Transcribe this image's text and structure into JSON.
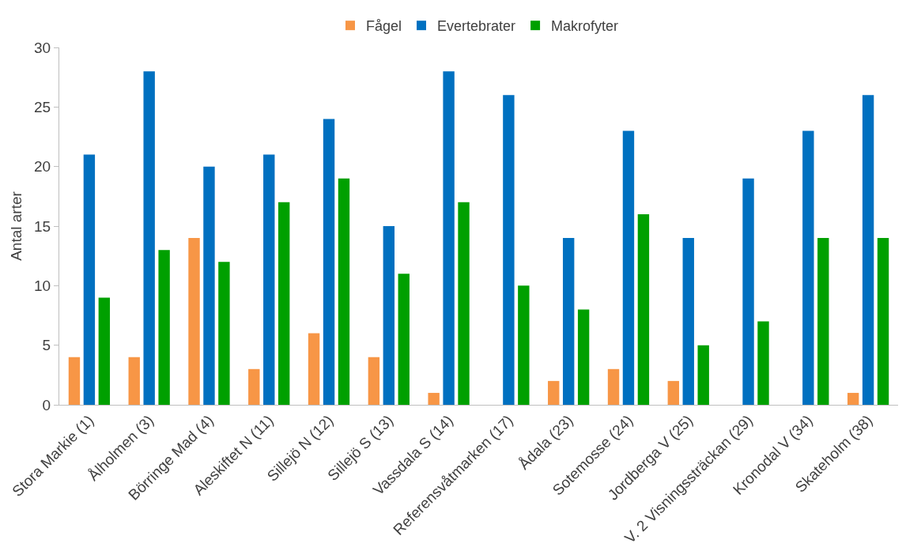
{
  "chart_data": {
    "type": "bar",
    "ylabel": "Antal arter",
    "categories": [
      "Stora Markie (1)",
      "Ålholmen (3)",
      "Börringe Mad (4)",
      "Aleskiftet N (11)",
      "Sillejö N (12)",
      "Sillejö S (13)",
      "Vassdala S (14)",
      "Referensvåtmarken (17)",
      "Ådala (23)",
      "Sotemosse (24)",
      "Jordberga V (25)",
      "V. 2 Visningssträckan (29)",
      "Kronodal V (34)",
      "Skateholm (38)"
    ],
    "series": [
      {
        "name": "Fågel",
        "color": "#f79646",
        "values": [
          4,
          4,
          14,
          3,
          6,
          4,
          1,
          0,
          2,
          3,
          2,
          0,
          0,
          1
        ]
      },
      {
        "name": "Evertebrater",
        "color": "#0070c0",
        "values": [
          21,
          28,
          20,
          21,
          24,
          15,
          28,
          26,
          14,
          23,
          14,
          19,
          23,
          26
        ]
      },
      {
        "name": "Makrofyter",
        "color": "#00a000",
        "values": [
          9,
          13,
          12,
          17,
          19,
          11,
          17,
          10,
          8,
          16,
          5,
          7,
          14,
          14
        ]
      }
    ],
    "ylim": [
      0,
      30
    ],
    "yticks": [
      0,
      5,
      10,
      15,
      20,
      25,
      30
    ],
    "grid": false,
    "legend": "top"
  }
}
